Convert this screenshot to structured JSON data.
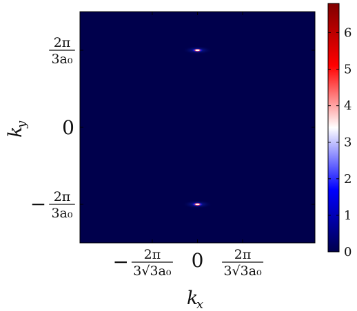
{
  "chart_data": {
    "type": "heatmap",
    "title": "",
    "xlabel": "k_x",
    "ylabel": "k_y",
    "x_ticks": [
      {
        "value": -1,
        "sign": "−",
        "numerator": "2π",
        "denominator": "3√3a₀"
      },
      {
        "value": 0,
        "text": "0"
      },
      {
        "value": 1,
        "sign": "",
        "numerator": "2π",
        "denominator": "3√3a₀"
      }
    ],
    "y_ticks": [
      {
        "value": 1,
        "sign": "",
        "numerator": "2π",
        "denominator": "3a₀"
      },
      {
        "value": 0,
        "text": "0"
      },
      {
        "value": -1,
        "sign": "−",
        "numerator": "2π",
        "denominator": "3a₀"
      }
    ],
    "x_units": "2π/(3√3 a₀)",
    "y_units": "2π/(3 a₀)",
    "xlim": [
      -2.6,
      2.6
    ],
    "ylim": [
      -1.5,
      1.5
    ],
    "background_value": 0,
    "hotspots": [
      {
        "x": 0,
        "y": 1,
        "peak": 6.8
      },
      {
        "x": 0,
        "y": -1,
        "peak": 6.8
      }
    ],
    "colorbar": {
      "min": 0,
      "max": 6.8,
      "ticks": [
        "0",
        "1",
        "2",
        "3",
        "4",
        "5",
        "6"
      ],
      "colormap": "seismic",
      "colors": [
        "#00004c",
        "#0000ff",
        "#ffffff",
        "#ff0000",
        "#800000"
      ]
    },
    "grid": false,
    "legend": "none"
  }
}
